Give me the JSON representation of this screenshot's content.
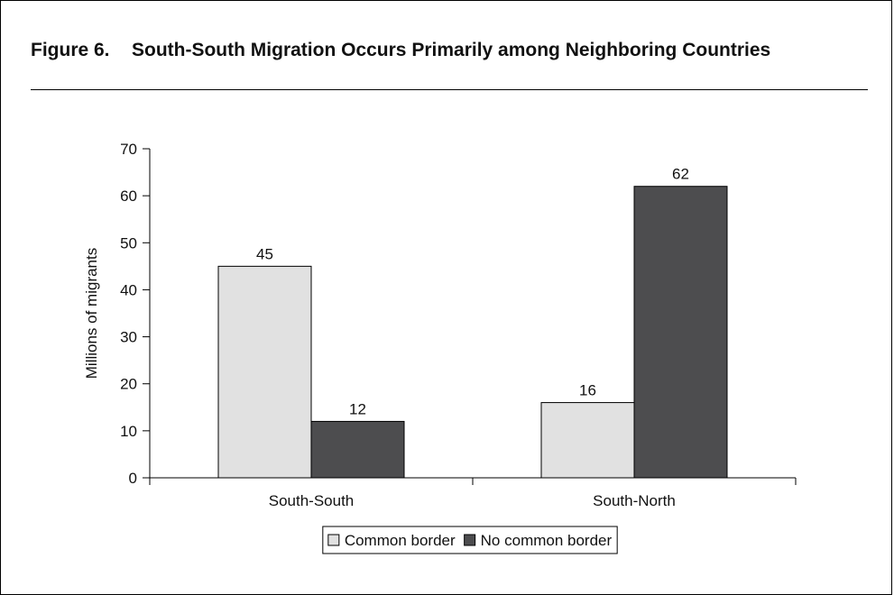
{
  "figure": {
    "number": "Figure 6.",
    "title": "South-South Migration Occurs Primarily among Neighboring Countries"
  },
  "chart_data": {
    "type": "bar",
    "categories": [
      "South-South",
      "South-North"
    ],
    "series": [
      {
        "name": "Common border",
        "values": [
          45,
          16
        ],
        "color": "#e1e1e1"
      },
      {
        "name": "No common border",
        "values": [
          12,
          62
        ],
        "color": "#4d4d4f"
      }
    ],
    "data_labels": [
      [
        "45",
        "16"
      ],
      [
        "12",
        "62"
      ]
    ],
    "xlabel": "",
    "ylabel": "Millions of migrants",
    "ylim": [
      0,
      70
    ],
    "yticks": [
      0,
      10,
      20,
      30,
      40,
      50,
      60,
      70
    ],
    "grid": false,
    "legend": "bottom"
  }
}
